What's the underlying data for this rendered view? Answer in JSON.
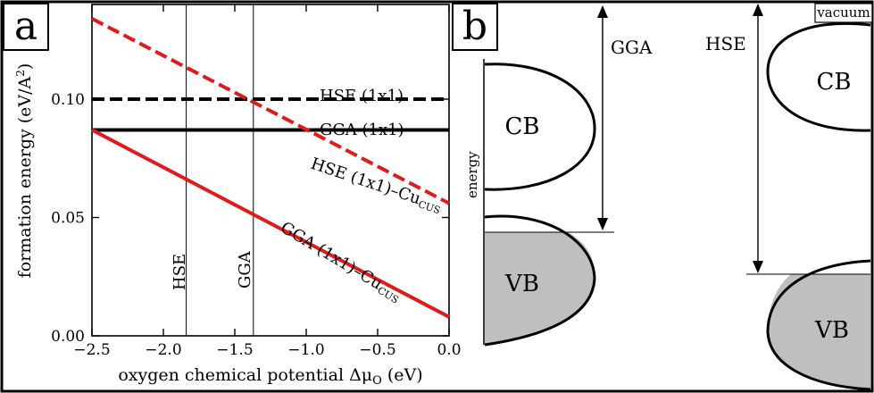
{
  "panel_a": {
    "letter": "a",
    "chart_data": {
      "type": "line",
      "xlabel": "oxygen chemical potential Δμ",
      "xlabel_sub": "O",
      "xlabel_unit": " (eV)",
      "ylabel": "formation energy (eV/A",
      "ylabel_sup": "2",
      "ylabel_end": ")",
      "xlim": [
        -2.5,
        0.0
      ],
      "ylim": [
        0.0,
        0.14
      ],
      "xticks": [
        -2.5,
        -2.0,
        -1.5,
        -1.0,
        -0.5,
        0.0
      ],
      "xtick_labels": [
        "−2.5",
        "−2.0",
        "−1.5",
        "−1.0",
        "−0.5",
        "0.0"
      ],
      "yticks": [
        0.0,
        0.05,
        0.1
      ],
      "ytick_labels": [
        "0.00",
        "0.05",
        "0.10"
      ],
      "grid": false,
      "series": [
        {
          "name": "HSE (1x1)",
          "x": [
            -2.5,
            0.0
          ],
          "y": [
            0.1,
            0.1
          ],
          "color": "#000000",
          "dashed": true
        },
        {
          "name": "GGA (1x1)",
          "x": [
            -2.5,
            0.0
          ],
          "y": [
            0.087,
            0.087
          ],
          "color": "#000000",
          "dashed": false
        },
        {
          "name": "HSE (1x1)–Cu",
          "name_sub": "CUS",
          "x": [
            -2.5,
            0.0
          ],
          "y": [
            0.134,
            0.056
          ],
          "color": "#dd1c1c",
          "dashed": true
        },
        {
          "name": "GGA (1x1)–Cu",
          "name_sub": "CUS",
          "x": [
            -2.5,
            0.0
          ],
          "y": [
            0.087,
            0.008
          ],
          "color": "#dd1c1c",
          "dashed": false
        }
      ],
      "vlines": [
        {
          "label": "HSE",
          "x": -1.84
        },
        {
          "label": "GGA",
          "x": -1.37
        }
      ]
    }
  },
  "panel_b": {
    "letter": "b",
    "energy_label": "energy",
    "gga": {
      "label": "GGA",
      "cb": "CB",
      "vb": "VB"
    },
    "hse": {
      "label": "HSE",
      "cb": "CB",
      "vb": "VB"
    },
    "vacuum_label": "vacuum",
    "colors": {
      "vb_fill": "#bfbfbf"
    }
  }
}
